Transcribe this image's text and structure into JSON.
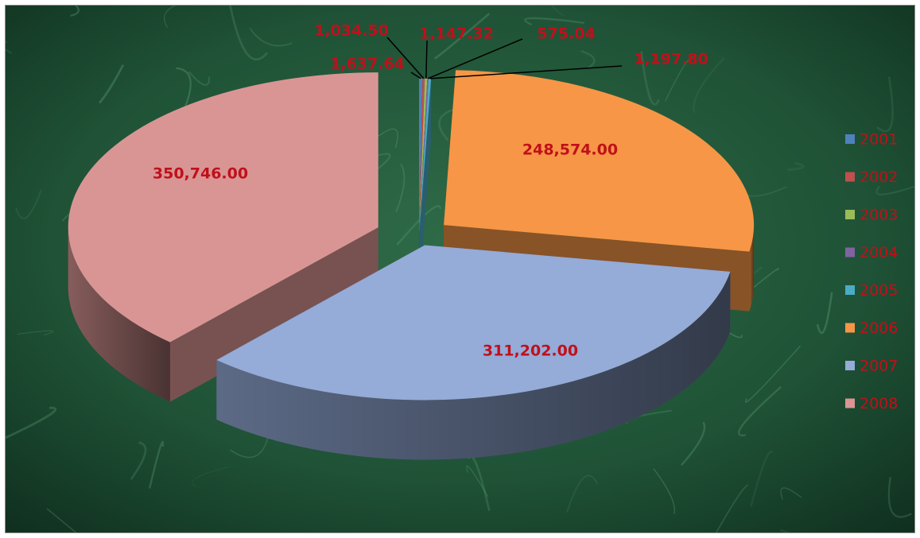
{
  "chart_data": {
    "type": "pie",
    "style": "3d-exploded",
    "categories": [
      "2001",
      "2002",
      "2003",
      "2004",
      "2005",
      "2006",
      "2007",
      "2008"
    ],
    "values": [
      1637.64,
      1034.5,
      1147.32,
      575.04,
      1197.8,
      248574.0,
      311202.0,
      350746.0
    ],
    "value_labels": [
      "1,637.64",
      "1,034.50",
      "1,147.32",
      "575.04",
      "1,197.80",
      "248,574.00",
      "311,202.00",
      "350,746.00"
    ],
    "colors": [
      "#4f81bd",
      "#c0504d",
      "#9bbb59",
      "#8064a2",
      "#4bacc6",
      "#f79646",
      "#95abd8",
      "#d99594"
    ],
    "legend_position": "right",
    "label_color": "#c0101a",
    "background": "green marble texture",
    "title": ""
  }
}
